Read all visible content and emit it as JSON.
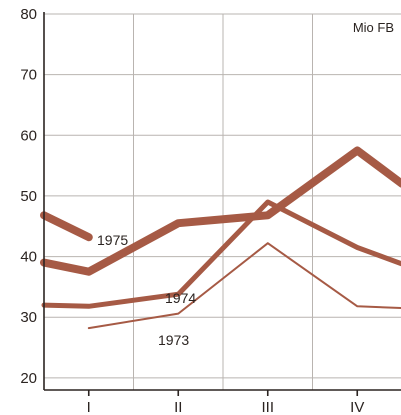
{
  "chart_data": {
    "type": "line",
    "title": "",
    "unit_label": "Mio FB",
    "xlabel": "",
    "ylabel": "",
    "categories": [
      "",
      "I",
      "II",
      "III",
      "IV",
      ""
    ],
    "x_tick_labels": [
      "I",
      "II",
      "III",
      "IV"
    ],
    "y_ticks": [
      20,
      30,
      40,
      50,
      60,
      70,
      80
    ],
    "ylim": [
      18,
      80
    ],
    "grid": true,
    "legend": "none",
    "line_color": "#a65a45",
    "series": [
      {
        "name": "1975",
        "segments": [
          [
            [
              0.0,
              46.8
            ],
            [
              0.5,
              43.2
            ]
          ],
          [
            [
              0.0,
              39.0
            ],
            [
              0.5,
              37.5
            ],
            [
              1.5,
              45.5
            ],
            [
              2.5,
              46.8
            ],
            [
              3.5,
              57.5
            ],
            [
              4.0,
              52.0
            ]
          ]
        ],
        "stroke_width": 8
      },
      {
        "name": "1974",
        "segments": [
          [
            [
              0.0,
              32.0
            ],
            [
              0.5,
              31.8
            ],
            [
              1.5,
              33.8
            ],
            [
              2.5,
              49.0
            ],
            [
              3.5,
              41.5
            ],
            [
              4.0,
              38.8
            ]
          ]
        ],
        "stroke_width": 5
      },
      {
        "name": "1973",
        "segments": [
          [
            [
              0.5,
              28.2
            ],
            [
              1.5,
              30.6
            ],
            [
              2.5,
              42.2
            ],
            [
              3.5,
              31.8
            ],
            [
              4.0,
              31.5
            ]
          ]
        ],
        "stroke_width": 2
      }
    ]
  }
}
